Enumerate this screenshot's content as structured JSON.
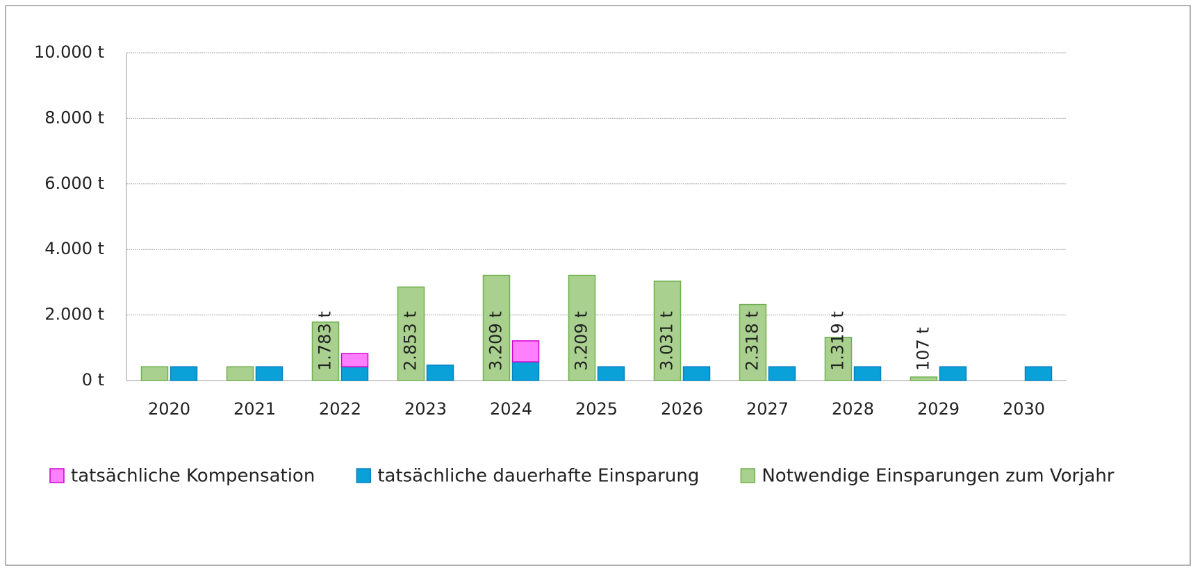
{
  "chart_data": {
    "type": "bar",
    "categories": [
      "2020",
      "2021",
      "2022",
      "2023",
      "2024",
      "2025",
      "2026",
      "2027",
      "2028",
      "2029",
      "2030"
    ],
    "series": [
      {
        "name": "tatsächliche Kompensation",
        "color": "#ff80ff",
        "stack": "actual",
        "values": [
          null,
          null,
          400,
          null,
          640,
          null,
          null,
          null,
          null,
          null,
          null
        ]
      },
      {
        "name": "tatsächliche dauerhafte Einsparung",
        "color": "#0aa0d8",
        "stack": "actual",
        "values": [
          420,
          420,
          420,
          470,
          570,
          420,
          420,
          420,
          420,
          420,
          420
        ]
      },
      {
        "name": "Notwendige Einsparungen zum Vorjahr",
        "color": "#a9d08e",
        "stack": "needed",
        "values": [
          420,
          420,
          1783,
          2853,
          3209,
          3209,
          3031,
          2318,
          1319,
          107,
          null
        ],
        "value_labels": [
          null,
          null,
          "1.783 t",
          "2.853 t",
          "3.209 t",
          "3.209 t",
          "3.031 t",
          "2.318 t",
          "1.319 t",
          "107 t",
          null
        ]
      }
    ],
    "ylim": [
      0,
      10000
    ],
    "yticks": [
      {
        "value": 0,
        "label": "0 t"
      },
      {
        "value": 2000,
        "label": "2.000 t"
      },
      {
        "value": 4000,
        "label": "4.000 t"
      },
      {
        "value": 6000,
        "label": "6.000 t"
      },
      {
        "value": 8000,
        "label": "8.000 t"
      },
      {
        "value": 10000,
        "label": "10.000 t"
      }
    ],
    "grid": true,
    "legend": "bottom"
  }
}
